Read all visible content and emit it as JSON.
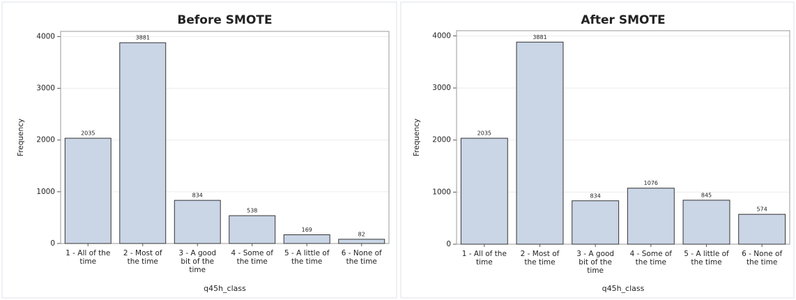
{
  "chart_data": [
    {
      "type": "bar",
      "title": "Before SMOTE",
      "x_label": "q45h_class",
      "y_label": "Frequency",
      "categories": [
        "1 - All of the time",
        "2 - Most of the time",
        "3 - A good bit of the time",
        "4 - Some of the time",
        "5 - A little of the time",
        "6 - None of the time"
      ],
      "values": [
        2035,
        3881,
        834,
        538,
        169,
        82
      ],
      "color": "#cad5e6",
      "ylim": [
        0,
        4100
      ],
      "yticks": [
        0,
        1000,
        2000,
        3000,
        4000
      ],
      "grid": true
    },
    {
      "type": "bar",
      "title": "After SMOTE",
      "x_label": "q45h_class",
      "y_label": "Frequency",
      "categories": [
        "1 - All of the time",
        "2 - Most of the time",
        "3 - A good bit of the time",
        "4 - Some of the time",
        "5 - A little of the time",
        "6 - None of the time"
      ],
      "values": [
        2035,
        3881,
        834,
        1076,
        845,
        574
      ],
      "color": "#cad5e6",
      "ylim": [
        0,
        4100
      ],
      "yticks": [
        0,
        1000,
        2000,
        3000,
        4000
      ],
      "grid": true
    }
  ]
}
